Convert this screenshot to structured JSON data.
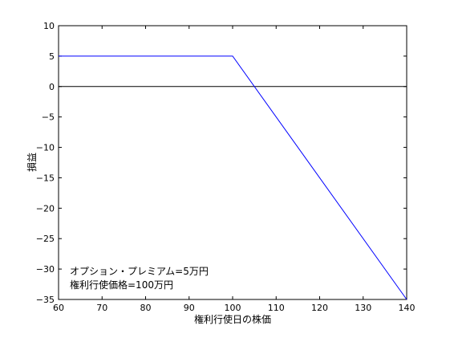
{
  "chart_data": {
    "type": "line",
    "title": "",
    "xlabel": "権利行使日の株価",
    "ylabel": "損益",
    "xlim": [
      60,
      140
    ],
    "ylim": [
      -35,
      10
    ],
    "xticks": [
      60,
      70,
      80,
      90,
      100,
      110,
      120,
      130,
      140
    ],
    "yticks": [
      10,
      5,
      0,
      -5,
      -10,
      -15,
      -20,
      -25,
      -30,
      -35
    ],
    "grid": false,
    "legend": "none",
    "series": [
      {
        "x": [
          60,
          100,
          140
        ],
        "y": [
          5,
          5,
          -35
        ],
        "color": "#0000ff"
      }
    ],
    "reference_lines": [
      {
        "y": 0,
        "color": "#000000"
      }
    ],
    "annotations": [
      "オプション・プレミアム=5万円",
      "権利行使価格=100万円"
    ]
  }
}
